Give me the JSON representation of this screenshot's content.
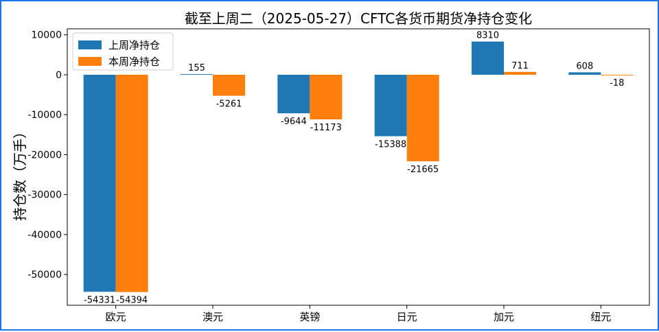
{
  "chart_data": {
    "type": "bar",
    "title": "截至上周二（2025-05-27）CFTC各货币期货净持仓变化",
    "xlabel": "",
    "ylabel": "持仓数（万手）",
    "categories": [
      "欧元",
      "澳元",
      "英镑",
      "日元",
      "加元",
      "纽元"
    ],
    "series": [
      {
        "name": "上周净持仓",
        "color": "#1f77b4",
        "values": [
          -54331,
          155,
          -9644,
          -15388,
          8310,
          608
        ]
      },
      {
        "name": "本周净持仓",
        "color": "#ff7f0e",
        "values": [
          -54394,
          -5261,
          -11173,
          -21665,
          711,
          -18
        ]
      }
    ],
    "ylim": [
      -57700,
      11500
    ],
    "yticks": [
      10000,
      0,
      -10000,
      -20000,
      -30000,
      -40000,
      -50000
    ],
    "grid": false,
    "legend": "top-left"
  }
}
